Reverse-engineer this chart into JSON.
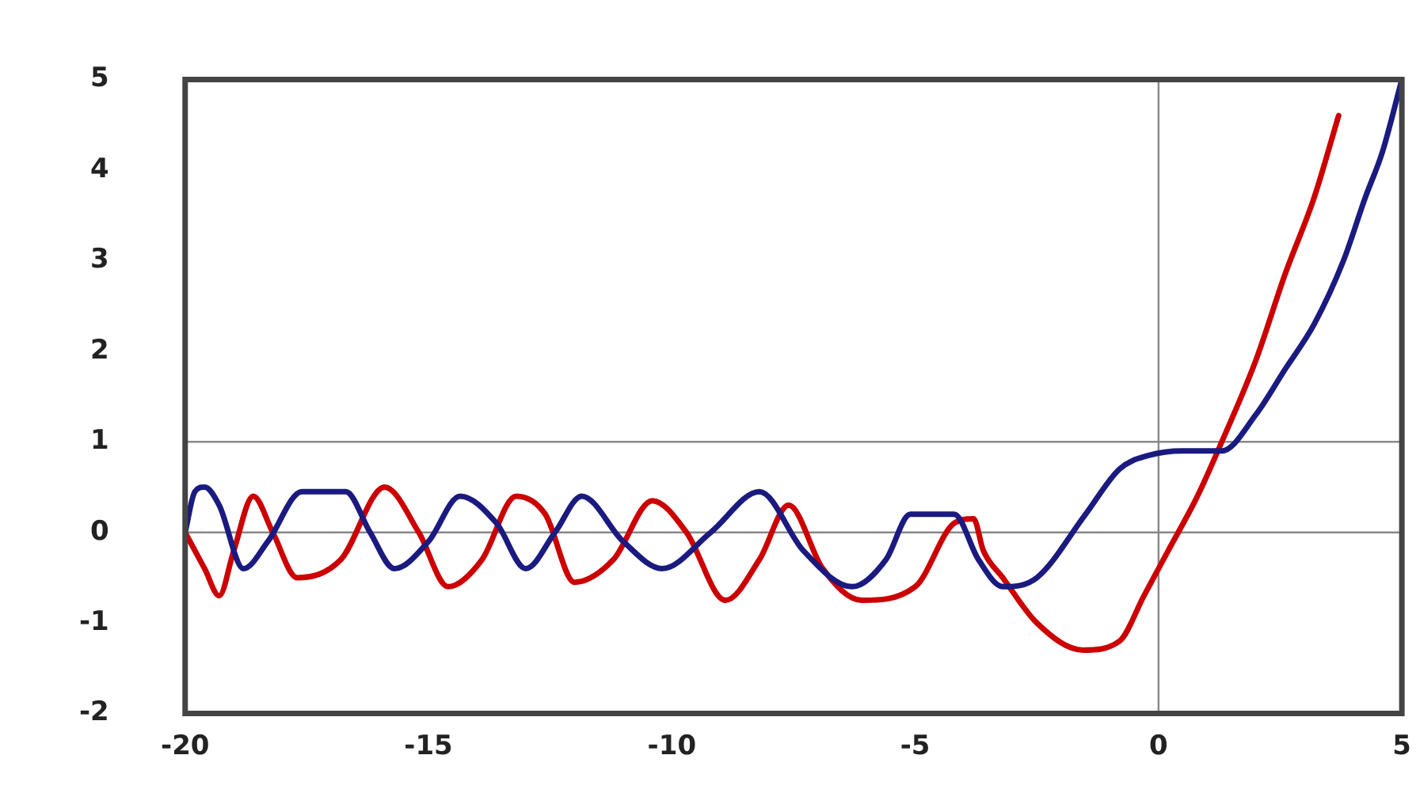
{
  "chart_data": {
    "type": "line",
    "xlim": [
      -20,
      5
    ],
    "ylim": [
      -2,
      5
    ],
    "xticks": [
      -20,
      -15,
      -10,
      -5,
      0,
      5
    ],
    "yticks": [
      -2,
      -1,
      0,
      1,
      2,
      3,
      4,
      5
    ],
    "grid": false,
    "legend": false,
    "marker": "none",
    "line_style": "solid",
    "ref_lines": [
      {
        "axis": "y",
        "value": 0,
        "color": "#888888"
      },
      {
        "axis": "y",
        "value": 1,
        "color": "#888888"
      },
      {
        "axis": "x",
        "value": 0,
        "color": "#888888"
      }
    ],
    "series": [
      {
        "color": "#1a1a80",
        "x": [
          -20,
          -19.8,
          -19.6,
          -19.3,
          -18.8,
          -18.3,
          -17.6,
          -16.7,
          -16.2,
          -15.7,
          -15.0,
          -14.35,
          -13.6,
          -13.0,
          -12.4,
          -11.85,
          -11.0,
          -10.2,
          -9.2,
          -8.2,
          -7.3,
          -6.3,
          -5.6,
          -5.1,
          -4.2,
          -3.7,
          -3.2,
          -2.5,
          -1.5,
          -0.8,
          -0.2,
          0.5,
          1.3,
          2.0,
          2.6,
          3.2,
          3.8,
          4.25,
          4.6,
          5
        ],
        "values": [
          0,
          0.45,
          0.5,
          0.3,
          -0.4,
          -0.1,
          0.45,
          0.45,
          0.0,
          -0.4,
          -0.1,
          0.4,
          0.1,
          -0.4,
          0.0,
          0.4,
          -0.1,
          -0.4,
          0.0,
          0.45,
          -0.2,
          -0.6,
          -0.3,
          0.2,
          0.2,
          -0.3,
          -0.6,
          -0.5,
          0.2,
          0.7,
          0.85,
          0.9,
          0.9,
          1.3,
          1.8,
          2.3,
          3.0,
          3.7,
          4.2,
          5
        ]
      },
      {
        "color": "#cc0000",
        "x": [
          -20,
          -19.6,
          -19.3,
          -19.0,
          -18.6,
          -18.2,
          -17.7,
          -16.8,
          -15.9,
          -15.2,
          -14.6,
          -13.9,
          -13.2,
          -12.6,
          -12.0,
          -11.2,
          -10.4,
          -9.7,
          -8.9,
          -8.2,
          -7.6,
          -6.9,
          -6.1,
          -5.0,
          -4.2,
          -3.8,
          -3.6,
          -3.2,
          -2.5,
          -1.55,
          -0.8,
          -0.3,
          0.2,
          0.8,
          1.3,
          2.0,
          2.6,
          3.2,
          3.7
        ],
        "values": [
          0,
          -0.4,
          -0.7,
          -0.2,
          0.4,
          0.0,
          -0.5,
          -0.3,
          0.5,
          0.0,
          -0.6,
          -0.3,
          0.4,
          0.2,
          -0.55,
          -0.3,
          0.35,
          0.0,
          -0.75,
          -0.3,
          0.3,
          -0.4,
          -0.75,
          -0.6,
          0.1,
          0.15,
          -0.2,
          -0.5,
          -1.0,
          -1.3,
          -1.2,
          -0.7,
          -0.2,
          0.4,
          1.0,
          1.9,
          2.85,
          3.7,
          4.6
        ]
      }
    ]
  }
}
